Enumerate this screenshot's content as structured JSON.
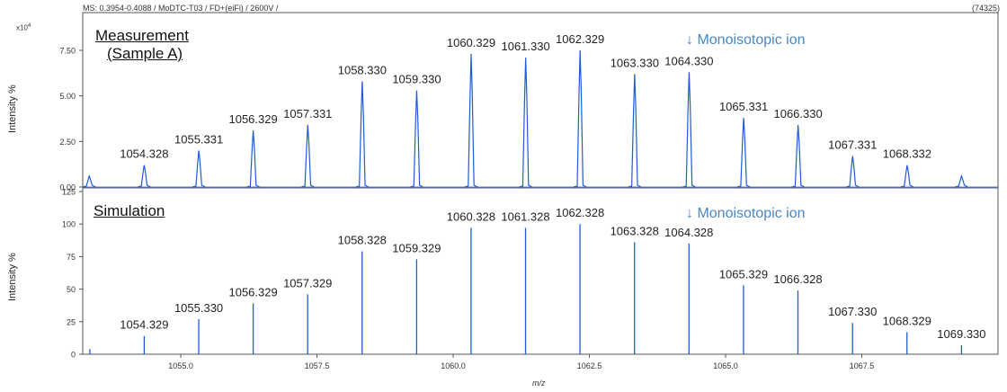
{
  "header": {
    "info": "MS: 0.3954-0.4088 / MoDTC-T03 / FD+(eiFi) / 2600V /",
    "count": "(74325)"
  },
  "colors": {
    "peak": "#1f5bd6",
    "annotation": "#4a86c5",
    "axis": "#555555"
  },
  "chart_data": [
    {
      "type": "line",
      "title": "Measurement (Sample A)",
      "title_lines": [
        "Measurement",
        "(Sample A)"
      ],
      "annotation": "↓ Monoisotopic ion",
      "ylabel": "Intensity %",
      "multiplier": "x10",
      "multiplier_exp": "4",
      "ylim": [
        0,
        9.5
      ],
      "yticks": [
        "0.00",
        "2.50",
        "5.00",
        "7.50"
      ],
      "ytick_values": [
        0,
        2.5,
        5,
        7.5
      ],
      "xlim": [
        1053.2,
        1070.0
      ],
      "peaks": [
        {
          "x": 1053.32,
          "y": 0.6,
          "label": ""
        },
        {
          "x": 1054.328,
          "y": 1.2,
          "label": "1054.328"
        },
        {
          "x": 1055.331,
          "y": 2.0,
          "label": "1055.331"
        },
        {
          "x": 1056.329,
          "y": 3.1,
          "label": "1056.329"
        },
        {
          "x": 1057.331,
          "y": 3.4,
          "label": "1057.331"
        },
        {
          "x": 1058.33,
          "y": 5.8,
          "label": "1058.330"
        },
        {
          "x": 1059.33,
          "y": 5.3,
          "label": "1059.330"
        },
        {
          "x": 1060.329,
          "y": 7.3,
          "label": "1060.329"
        },
        {
          "x": 1061.33,
          "y": 7.1,
          "label": "1061.330"
        },
        {
          "x": 1062.329,
          "y": 7.5,
          "label": "1062.329"
        },
        {
          "x": 1063.33,
          "y": 6.2,
          "label": "1063.330"
        },
        {
          "x": 1064.33,
          "y": 6.3,
          "label": "1064.330"
        },
        {
          "x": 1065.331,
          "y": 3.8,
          "label": "1065.331"
        },
        {
          "x": 1066.33,
          "y": 3.4,
          "label": "1066.330"
        },
        {
          "x": 1067.331,
          "y": 1.7,
          "label": "1067.331"
        },
        {
          "x": 1068.332,
          "y": 1.2,
          "label": "1068.332"
        },
        {
          "x": 1069.33,
          "y": 0.6,
          "label": ""
        }
      ]
    },
    {
      "type": "bar",
      "title": "Simulation",
      "annotation": "↓ Monoisotopic ion",
      "ylabel": "Intensity %",
      "ylim": [
        0,
        125
      ],
      "yticks": [
        "0",
        "25",
        "50",
        "75",
        "100",
        "125"
      ],
      "ytick_values": [
        0,
        25,
        50,
        75,
        100,
        125
      ],
      "xlabel": "m/z",
      "xlim": [
        1053.2,
        1070.0
      ],
      "xticks": [
        "1055.0",
        "1057.5",
        "1060.0",
        "1062.5",
        "1065.0",
        "1067.5"
      ],
      "xtick_values": [
        1055.0,
        1057.5,
        1060.0,
        1062.5,
        1065.0,
        1067.5
      ],
      "peaks": [
        {
          "x": 1053.33,
          "y": 4,
          "label": ""
        },
        {
          "x": 1054.329,
          "y": 14,
          "label": "1054.329"
        },
        {
          "x": 1055.33,
          "y": 27,
          "label": "1055.330"
        },
        {
          "x": 1056.329,
          "y": 39,
          "label": "1056.329"
        },
        {
          "x": 1057.329,
          "y": 46,
          "label": "1057.329"
        },
        {
          "x": 1058.328,
          "y": 79,
          "label": "1058.328"
        },
        {
          "x": 1059.329,
          "y": 73,
          "label": "1059.329"
        },
        {
          "x": 1060.328,
          "y": 97,
          "label": "1060.328"
        },
        {
          "x": 1061.328,
          "y": 97,
          "label": "1061.328"
        },
        {
          "x": 1062.328,
          "y": 100,
          "label": "1062.328"
        },
        {
          "x": 1063.328,
          "y": 86,
          "label": "1063.328"
        },
        {
          "x": 1064.328,
          "y": 85,
          "label": "1064.328"
        },
        {
          "x": 1065.329,
          "y": 53,
          "label": "1065.329"
        },
        {
          "x": 1066.328,
          "y": 49,
          "label": "1066.328"
        },
        {
          "x": 1067.33,
          "y": 24,
          "label": "1067.330"
        },
        {
          "x": 1068.329,
          "y": 17,
          "label": "1068.329"
        },
        {
          "x": 1069.33,
          "y": 7,
          "label": "1069.330"
        }
      ]
    }
  ]
}
